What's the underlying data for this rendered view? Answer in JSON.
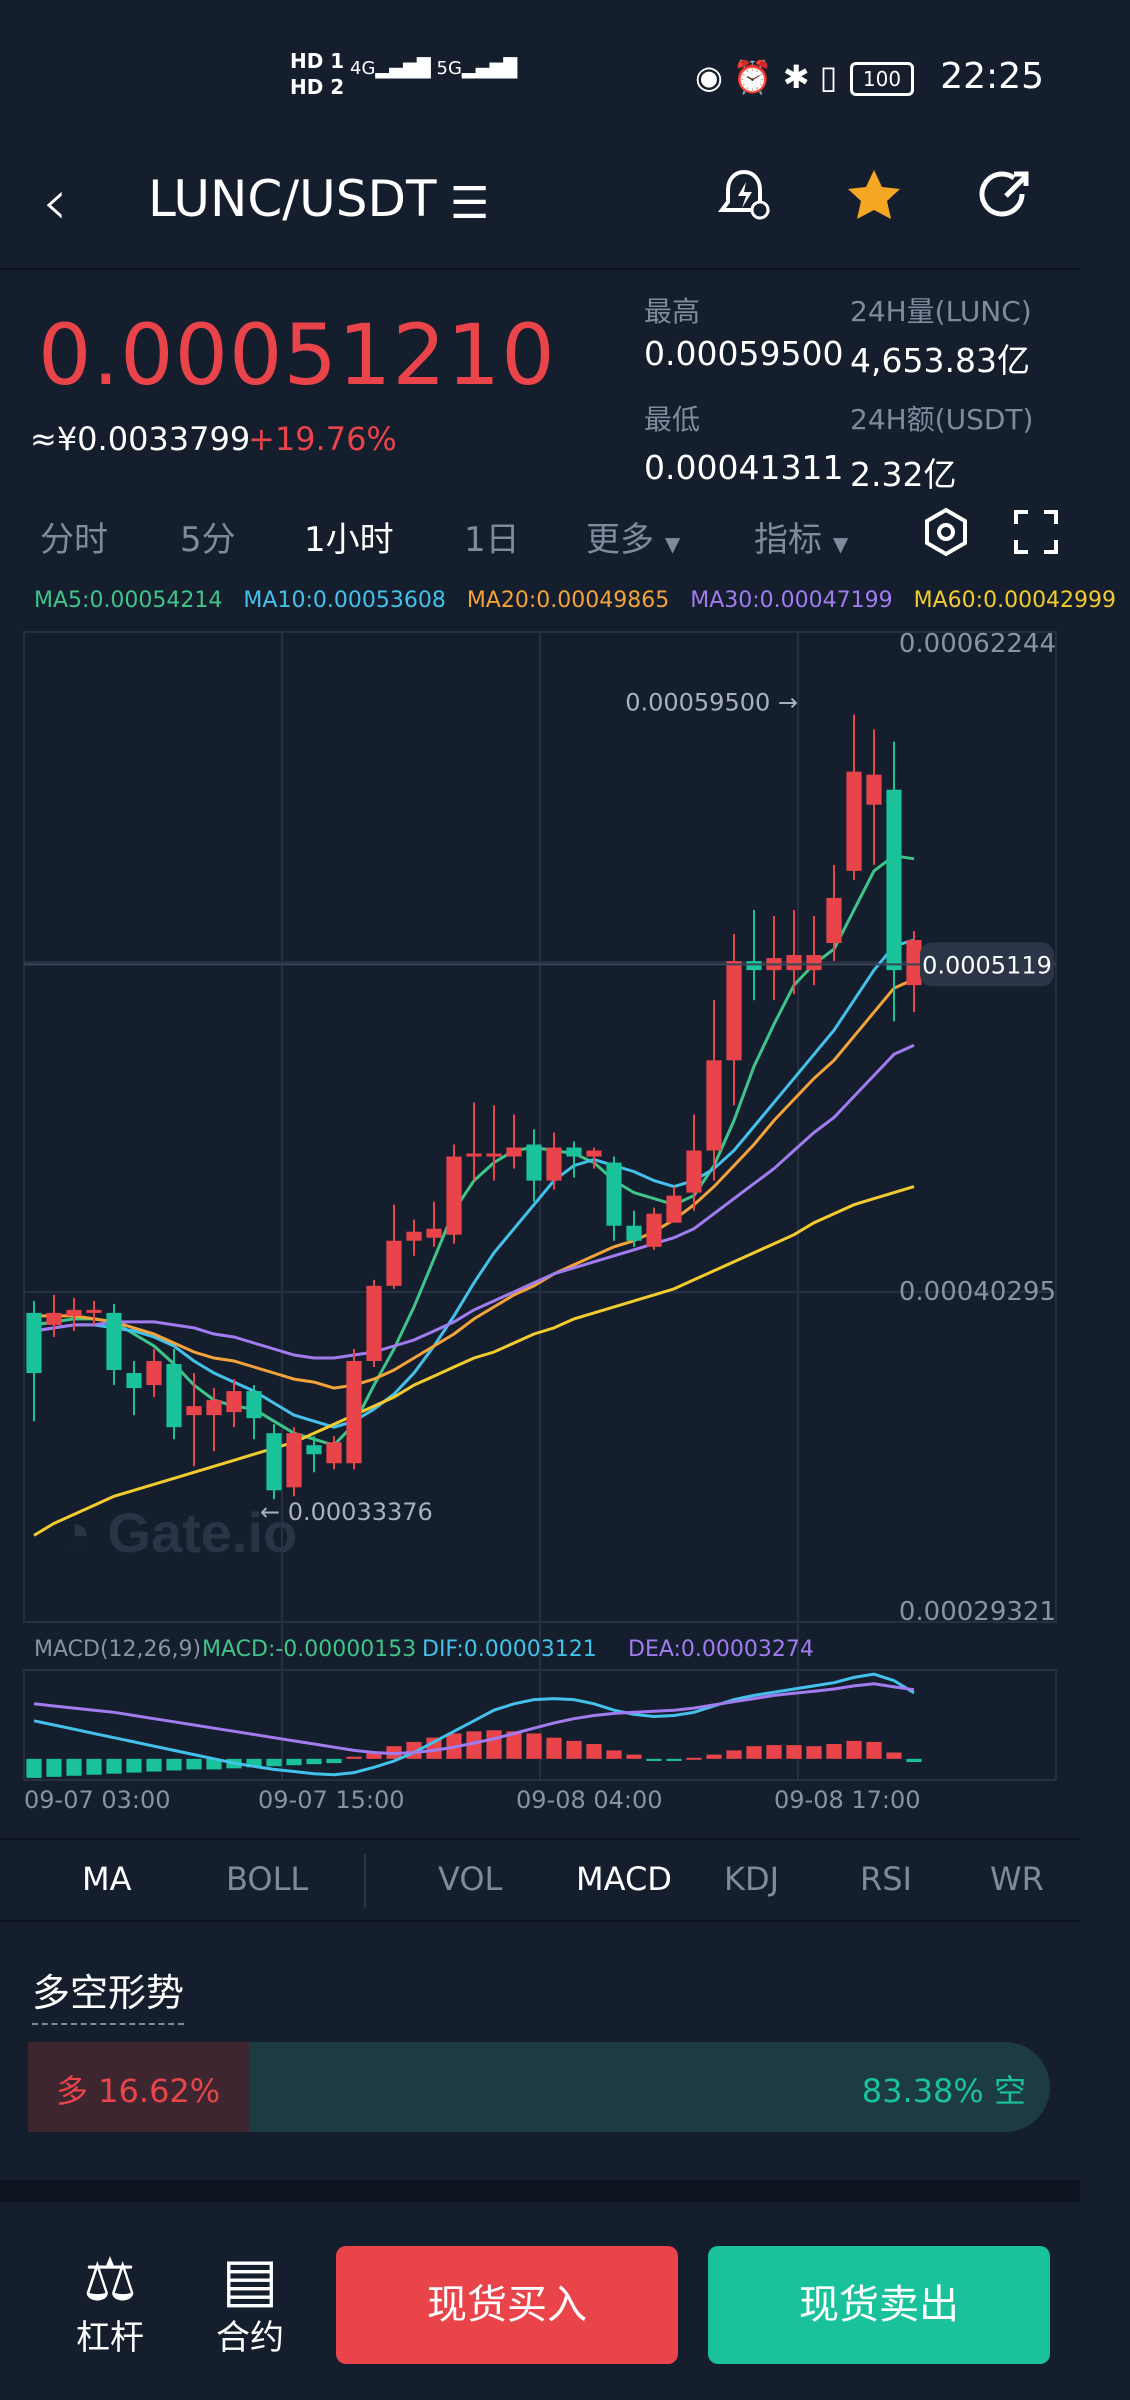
{
  "status_bar": {
    "time": "22:25",
    "hd1": "HD 1",
    "hd2": "HD 2",
    "net1": "4G",
    "net2": "5G",
    "battery": "100"
  },
  "header": {
    "pair": "LUNC/USDT"
  },
  "ticker": {
    "price": "0.00051210",
    "cny": "≈¥0.0033799",
    "change": "+19.76%",
    "high_label": "最高",
    "high_value": "0.00059500",
    "low_label": "最低",
    "low_value": "0.00041311",
    "vol_label": "24H量(LUNC)",
    "vol_value": "4,653.83亿",
    "amt_label": "24H额(USDT)",
    "amt_value": "2.32亿"
  },
  "tabs": [
    "分时",
    "5分",
    "1小时",
    "1日",
    "更多",
    "指标"
  ],
  "active_tab": "1小时",
  "ma_legend": [
    {
      "text": "MA5:0.00054214",
      "color": "#3fc48a"
    },
    {
      "text": "MA10:0.00053608",
      "color": "#44c1ea"
    },
    {
      "text": "MA20:0.00049865",
      "color": "#f3a33a"
    },
    {
      "text": "MA30:0.00047199",
      "color": "#a07cf0"
    },
    {
      "text": "MA60:0.00042999",
      "color": "#f2cc2e"
    }
  ],
  "chart_data": {
    "type": "candlestick",
    "y_ticks": [
      "0.00062244",
      "0.00040295",
      "0.00029321"
    ],
    "ylim": [
      0.00029321,
      0.00062244
    ],
    "current_price_tag": "0.0005119",
    "current_price": 0.0005119,
    "high_marker": "0.00059500",
    "high_value": 0.000595,
    "low_marker": "0.00033376",
    "low_value": 0.00033376,
    "x_labels": [
      "09-07 03:00",
      "09-07 15:00",
      "09-08 04:00",
      "09-08 17:00"
    ],
    "candles": [
      {
        "o": 0.000396,
        "c": 0.000376,
        "h": 0.0004,
        "l": 0.00036
      },
      {
        "o": 0.000392,
        "c": 0.000396,
        "h": 0.000402,
        "l": 0.000388
      },
      {
        "o": 0.000395,
        "c": 0.000397,
        "h": 0.000401,
        "l": 0.00039
      },
      {
        "o": 0.000396,
        "c": 0.000397,
        "h": 0.0004,
        "l": 0.000392
      },
      {
        "o": 0.000396,
        "c": 0.000377,
        "h": 0.000399,
        "l": 0.000372
      },
      {
        "o": 0.000376,
        "c": 0.000371,
        "h": 0.00038,
        "l": 0.000362
      },
      {
        "o": 0.000372,
        "c": 0.00038,
        "h": 0.000384,
        "l": 0.000368
      },
      {
        "o": 0.000379,
        "c": 0.000358,
        "h": 0.000384,
        "l": 0.000354
      },
      {
        "o": 0.000362,
        "c": 0.000365,
        "h": 0.000376,
        "l": 0.000345
      },
      {
        "o": 0.000362,
        "c": 0.000367,
        "h": 0.000371,
        "l": 0.00035
      },
      {
        "o": 0.000363,
        "c": 0.00037,
        "h": 0.000374,
        "l": 0.000358
      },
      {
        "o": 0.00037,
        "c": 0.000361,
        "h": 0.000372,
        "l": 0.000354
      },
      {
        "o": 0.000356,
        "c": 0.000337,
        "h": 0.000359,
        "l": 0.000334
      },
      {
        "o": 0.000338,
        "c": 0.000356,
        "h": 0.000358,
        "l": 0.000335
      },
      {
        "o": 0.000352,
        "c": 0.000349,
        "h": 0.000355,
        "l": 0.000343
      },
      {
        "o": 0.000346,
        "c": 0.000353,
        "h": 0.000355,
        "l": 0.000344
      },
      {
        "o": 0.000346,
        "c": 0.00038,
        "h": 0.000384,
        "l": 0.000344
      },
      {
        "o": 0.00038,
        "c": 0.000405,
        "h": 0.000407,
        "l": 0.000378
      },
      {
        "o": 0.000405,
        "c": 0.00042,
        "h": 0.000432,
        "l": 0.000404
      },
      {
        "o": 0.00042,
        "c": 0.000423,
        "h": 0.000427,
        "l": 0.000415
      },
      {
        "o": 0.000421,
        "c": 0.000424,
        "h": 0.000433,
        "l": 0.000418
      },
      {
        "o": 0.000422,
        "c": 0.000448,
        "h": 0.000452,
        "l": 0.000419
      },
      {
        "o": 0.000448,
        "c": 0.000449,
        "h": 0.000466,
        "l": 0.00044
      },
      {
        "o": 0.000448,
        "c": 0.000449,
        "h": 0.000465,
        "l": 0.00044
      },
      {
        "o": 0.000448,
        "c": 0.000451,
        "h": 0.000462,
        "l": 0.000444
      },
      {
        "o": 0.000452,
        "c": 0.00044,
        "h": 0.000457,
        "l": 0.000433
      },
      {
        "o": 0.00044,
        "c": 0.000451,
        "h": 0.000456,
        "l": 0.000437
      },
      {
        "o": 0.000451,
        "c": 0.000448,
        "h": 0.000453,
        "l": 0.000441
      },
      {
        "o": 0.000448,
        "c": 0.00045,
        "h": 0.000451,
        "l": 0.000444
      },
      {
        "o": 0.000446,
        "c": 0.000425,
        "h": 0.000448,
        "l": 0.00042
      },
      {
        "o": 0.000425,
        "c": 0.00042,
        "h": 0.00043,
        "l": 0.000418
      },
      {
        "o": 0.000418,
        "c": 0.000429,
        "h": 0.000431,
        "l": 0.000417
      },
      {
        "o": 0.000426,
        "c": 0.000435,
        "h": 0.000438,
        "l": 0.000426
      },
      {
        "o": 0.000436,
        "c": 0.00045,
        "h": 0.000462,
        "l": 0.00043
      },
      {
        "o": 0.00045,
        "c": 0.00048,
        "h": 0.0005,
        "l": 0.00044
      },
      {
        "o": 0.00048,
        "c": 0.000513,
        "h": 0.000522,
        "l": 0.000465
      },
      {
        "o": 0.000513,
        "c": 0.00051,
        "h": 0.00053,
        "l": 0.0005
      },
      {
        "o": 0.00051,
        "c": 0.000514,
        "h": 0.000528,
        "l": 0.0005
      },
      {
        "o": 0.00051,
        "c": 0.000515,
        "h": 0.00053,
        "l": 0.000502
      },
      {
        "o": 0.00051,
        "c": 0.000515,
        "h": 0.000528,
        "l": 0.000505
      },
      {
        "o": 0.000519,
        "c": 0.000534,
        "h": 0.000545,
        "l": 0.000513
      },
      {
        "o": 0.000543,
        "c": 0.000576,
        "h": 0.000595,
        "l": 0.00054
      },
      {
        "o": 0.000565,
        "c": 0.000575,
        "h": 0.00059,
        "l": 0.000545
      },
      {
        "o": 0.00057,
        "c": 0.00051,
        "h": 0.000586,
        "l": 0.000493
      },
      {
        "o": 0.000505,
        "c": 0.00052,
        "h": 0.000523,
        "l": 0.000496
      }
    ],
    "ma_series": [
      {
        "name": "MA5",
        "color": "#3fc48a",
        "values": [
          0.000392,
          0.000393,
          0.000394,
          0.000394,
          0.000393,
          0.000389,
          0.000385,
          0.000379,
          0.000372,
          0.000367,
          0.000365,
          0.000364,
          0.00036,
          0.000356,
          0.000354,
          0.000352,
          0.000359,
          0.000372,
          0.000384,
          0.000398,
          0.000414,
          0.00043,
          0.00044,
          0.000446,
          0.00045,
          0.000451,
          0.00045,
          0.000449,
          0.000446,
          0.00044,
          0.000436,
          0.000434,
          0.000432,
          0.000435,
          0.000445,
          0.00046,
          0.000478,
          0.000492,
          0.000505,
          0.000512,
          0.000517,
          0.00053,
          0.000543,
          0.000548,
          0.000547
        ]
      },
      {
        "name": "MA10",
        "color": "#44c1ea",
        "values": [
          0.00039,
          0.000391,
          0.000392,
          0.000392,
          0.000391,
          0.00039,
          0.000388,
          0.000385,
          0.00038,
          0.000376,
          0.000373,
          0.00037,
          0.000366,
          0.000362,
          0.00036,
          0.000358,
          0.00036,
          0.000364,
          0.000369,
          0.000376,
          0.000385,
          0.000395,
          0.000406,
          0.000416,
          0.000424,
          0.000432,
          0.00044,
          0.000445,
          0.000447,
          0.000445,
          0.000443,
          0.00044,
          0.000438,
          0.00044,
          0.000444,
          0.00045,
          0.000458,
          0.000466,
          0.000474,
          0.000482,
          0.00049,
          0.0005,
          0.00051,
          0.000518,
          0.00052
        ]
      },
      {
        "name": "MA20",
        "color": "#f3a33a",
        "values": [
          0.000395,
          0.000395,
          0.000395,
          0.000394,
          0.000393,
          0.000391,
          0.000389,
          0.000386,
          0.000383,
          0.000381,
          0.00038,
          0.000378,
          0.000376,
          0.000374,
          0.000373,
          0.000371,
          0.000372,
          0.000374,
          0.000377,
          0.000381,
          0.000385,
          0.000389,
          0.000394,
          0.000398,
          0.000402,
          0.000405,
          0.000409,
          0.000412,
          0.000415,
          0.000418,
          0.00042,
          0.000423,
          0.000427,
          0.000432,
          0.000438,
          0.000445,
          0.000452,
          0.00046,
          0.000467,
          0.000474,
          0.00048,
          0.000488,
          0.000496,
          0.000504,
          0.000507
        ]
      },
      {
        "name": "MA30",
        "color": "#a07cf0",
        "values": [
          0.00039,
          0.000391,
          0.000392,
          0.000392,
          0.000393,
          0.000393,
          0.000393,
          0.000392,
          0.000391,
          0.000389,
          0.000388,
          0.000386,
          0.000384,
          0.000382,
          0.000381,
          0.000381,
          0.000382,
          0.000383,
          0.000385,
          0.000387,
          0.00039,
          0.000393,
          0.000397,
          0.0004,
          0.000403,
          0.000406,
          0.000409,
          0.000411,
          0.000413,
          0.000415,
          0.000417,
          0.000419,
          0.000421,
          0.000424,
          0.000429,
          0.000434,
          0.000439,
          0.000444,
          0.00045,
          0.000456,
          0.000461,
          0.000468,
          0.000475,
          0.000482,
          0.000485
        ]
      },
      {
        "name": "MA60",
        "color": "#f2cc2e",
        "values": [
          0.000322,
          0.000326,
          0.000329,
          0.000332,
          0.000335,
          0.000337,
          0.000339,
          0.000341,
          0.000343,
          0.000345,
          0.000347,
          0.000349,
          0.000351,
          0.000353,
          0.000356,
          0.000359,
          0.000362,
          0.000365,
          0.000368,
          0.000372,
          0.000375,
          0.000378,
          0.000381,
          0.000383,
          0.000386,
          0.000389,
          0.000391,
          0.000394,
          0.000396,
          0.000398,
          0.0004,
          0.000402,
          0.000404,
          0.000407,
          0.00041,
          0.000413,
          0.000416,
          0.000419,
          0.000422,
          0.000426,
          0.000429,
          0.000432,
          0.000434,
          0.000436,
          0.000438
        ]
      }
    ],
    "macd": {
      "legend": [
        {
          "text": "MACD(12,26,9)",
          "color": "#8a93a3"
        },
        {
          "text": "MACD:-0.00000153",
          "color": "#3fc48a"
        },
        {
          "text": "DIF:0.00003121",
          "color": "#44c1ea"
        },
        {
          "text": "DEA:0.00003274",
          "color": "#a07cf0"
        }
      ],
      "hist": [
        -0.9,
        -0.85,
        -0.8,
        -0.75,
        -0.7,
        -0.65,
        -0.6,
        -0.55,
        -0.5,
        -0.5,
        -0.45,
        -0.4,
        -0.35,
        -0.3,
        -0.25,
        -0.2,
        0.1,
        0.3,
        0.6,
        0.8,
        1.0,
        1.2,
        1.3,
        1.35,
        1.3,
        1.2,
        1.0,
        0.85,
        0.7,
        0.4,
        0.2,
        -0.1,
        -0.1,
        0.05,
        0.2,
        0.4,
        0.6,
        0.65,
        0.65,
        0.6,
        0.7,
        0.85,
        0.8,
        0.3,
        -0.15
      ],
      "dif": [
        1.8,
        1.6,
        1.4,
        1.2,
        1.0,
        0.8,
        0.6,
        0.4,
        0.2,
        0.0,
        -0.2,
        -0.35,
        -0.5,
        -0.6,
        -0.7,
        -0.75,
        -0.65,
        -0.4,
        -0.1,
        0.3,
        0.8,
        1.3,
        1.8,
        2.3,
        2.6,
        2.8,
        2.85,
        2.8,
        2.6,
        2.3,
        2.1,
        2.0,
        2.05,
        2.2,
        2.5,
        2.8,
        3.0,
        3.15,
        3.3,
        3.45,
        3.6,
        3.85,
        4.0,
        3.7,
        3.12
      ],
      "dea": [
        2.6,
        2.5,
        2.4,
        2.3,
        2.2,
        2.05,
        1.9,
        1.75,
        1.6,
        1.45,
        1.3,
        1.15,
        1.0,
        0.85,
        0.7,
        0.55,
        0.4,
        0.3,
        0.25,
        0.3,
        0.4,
        0.55,
        0.75,
        0.95,
        1.2,
        1.45,
        1.7,
        1.9,
        2.05,
        2.15,
        2.2,
        2.25,
        2.3,
        2.4,
        2.55,
        2.7,
        2.85,
        3.0,
        3.1,
        3.2,
        3.3,
        3.45,
        3.55,
        3.4,
        3.27
      ]
    }
  },
  "indicator_tabs": [
    "MA",
    "BOLL",
    "VOL",
    "MACD",
    "KDJ",
    "RSI",
    "WR"
  ],
  "active_indicator": "MACD",
  "sentiment": {
    "title": "多空形势",
    "long_label": "多 16.62%",
    "short_label": "83.38% 空",
    "long_pct": 16.62
  },
  "bottom_nav": {
    "leverage": "杠杆",
    "contract": "合约",
    "buy": "现货买入",
    "sell": "现货卖出"
  },
  "watermark": "Gate.io",
  "colors": {
    "up": "#e8444a",
    "down": "#19c29a",
    "bg": "#151e2d"
  }
}
